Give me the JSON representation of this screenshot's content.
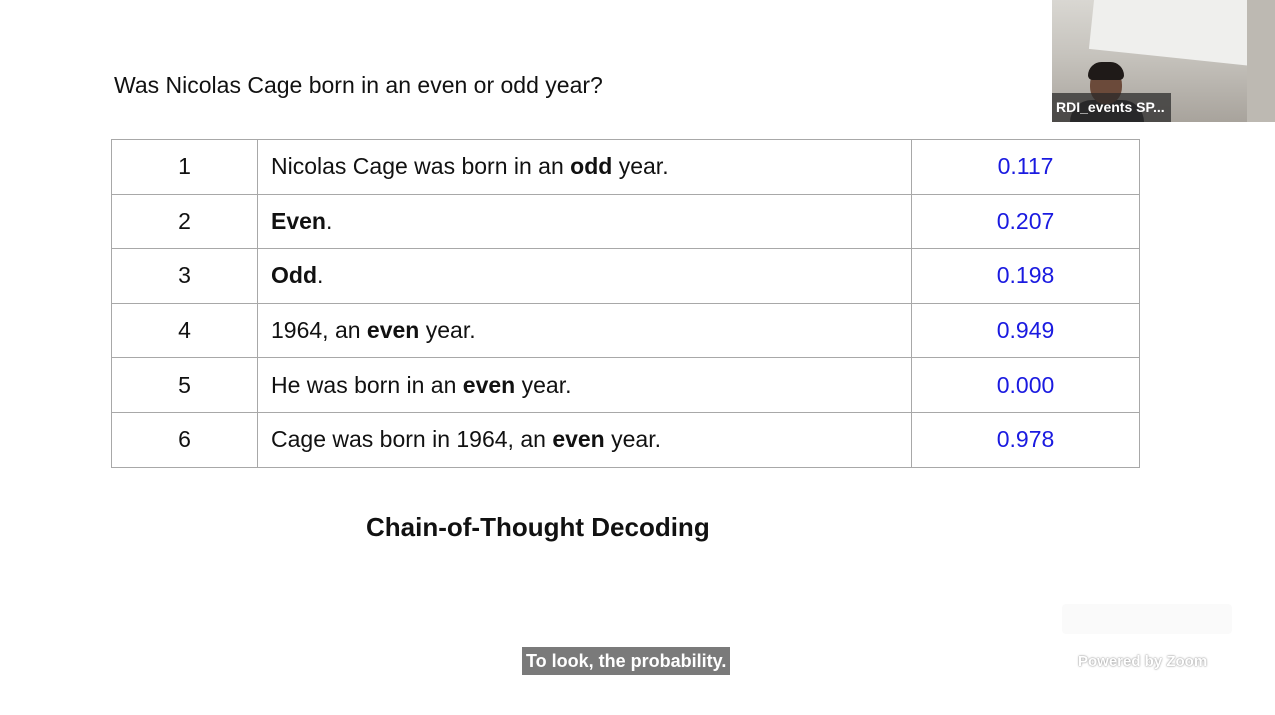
{
  "slide": {
    "question": "Was Nicolas Cage born in an even or odd year?",
    "rows": [
      {
        "rank": "1",
        "pre": "Nicolas Cage was born in an ",
        "bold": "odd",
        "post": " year.",
        "score": "0.117"
      },
      {
        "rank": "2",
        "pre": "",
        "bold": "Even",
        "post": ".",
        "score": "0.207"
      },
      {
        "rank": "3",
        "pre": "",
        "bold": "Odd",
        "post": ".",
        "score": "0.198"
      },
      {
        "rank": "4",
        "pre": "1964, an ",
        "bold": "even",
        "post": " year.",
        "score": "0.949"
      },
      {
        "rank": "5",
        "pre": "He was born in an ",
        "bold": "even",
        "post": " year.",
        "score": "0.000"
      },
      {
        "rank": "6",
        "pre": "Cage was born in 1964, an ",
        "bold": "even",
        "post": " year.",
        "score": "0.978"
      }
    ],
    "method_title": "Chain-of-Thought Decoding"
  },
  "caption": {
    "text": "To look, the probability."
  },
  "participant": {
    "name": "RDI_events SP..."
  },
  "branding": {
    "watermark": "Powered by Zoom"
  },
  "colors": {
    "score": "#1a1ae0",
    "caption_bg": "#7a7a7a",
    "table_border": "#a8a8a8"
  }
}
